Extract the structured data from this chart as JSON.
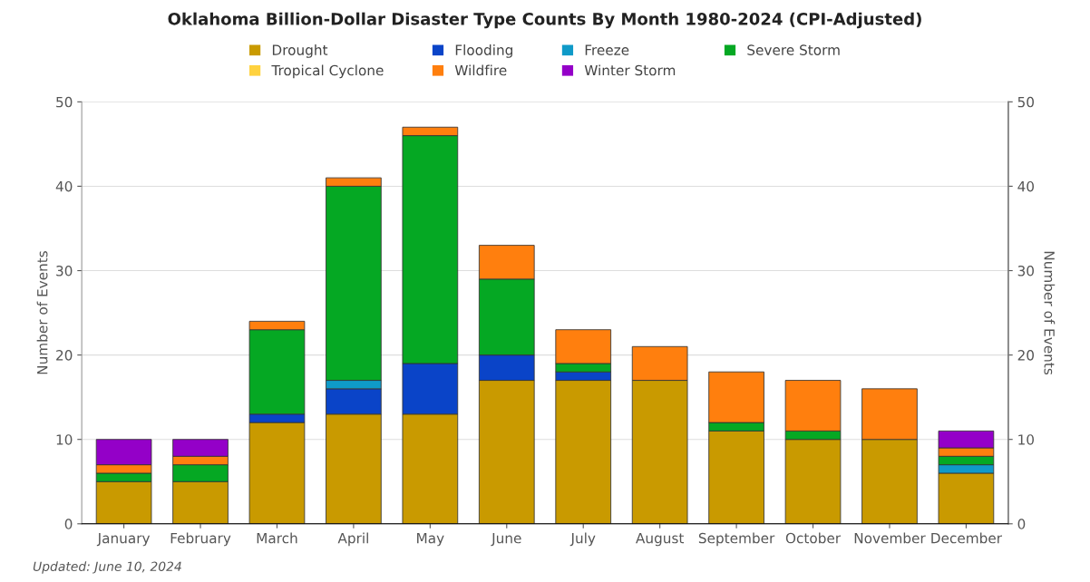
{
  "chart_data": {
    "type": "bar",
    "stacked": true,
    "title": "Oklahoma Billion-Dollar Disaster Type Counts By Month 1980-2024 (CPI-Adjusted)",
    "categories": [
      "January",
      "February",
      "March",
      "April",
      "May",
      "June",
      "July",
      "August",
      "September",
      "October",
      "November",
      "December"
    ],
    "series": [
      {
        "name": "Drought",
        "color": "#c99a00",
        "values": [
          5,
          5,
          12,
          13,
          13,
          17,
          17,
          17,
          11,
          10,
          10,
          6
        ]
      },
      {
        "name": "Flooding",
        "color": "#0a44c8",
        "values": [
          0,
          0,
          1,
          3,
          6,
          3,
          1,
          0,
          0,
          0,
          0,
          0
        ]
      },
      {
        "name": "Freeze",
        "color": "#0f9ac8",
        "values": [
          0,
          0,
          0,
          1,
          0,
          0,
          0,
          0,
          0,
          0,
          0,
          1
        ]
      },
      {
        "name": "Severe Storm",
        "color": "#05a823",
        "values": [
          1,
          2,
          10,
          23,
          27,
          9,
          1,
          0,
          1,
          1,
          0,
          1
        ]
      },
      {
        "name": "Tropical Cyclone",
        "color": "#ffd23f",
        "values": [
          0,
          0,
          0,
          0,
          0,
          0,
          0,
          0,
          0,
          0,
          0,
          0
        ]
      },
      {
        "name": "Wildfire",
        "color": "#ff7f0e",
        "values": [
          1,
          1,
          1,
          1,
          1,
          4,
          4,
          4,
          6,
          6,
          6,
          1
        ]
      },
      {
        "name": "Winter Storm",
        "color": "#9400c8",
        "values": [
          3,
          2,
          0,
          0,
          0,
          0,
          0,
          0,
          0,
          0,
          0,
          2
        ]
      }
    ],
    "ylabel": "Number of Events",
    "y2label": "Number of Events",
    "ylim": [
      0,
      50
    ],
    "yticks": [
      0,
      10,
      20,
      30,
      40,
      50
    ],
    "y2lim": [
      0,
      50
    ],
    "y2ticks": [
      0,
      10,
      20,
      30,
      40,
      50
    ],
    "grid": "y",
    "legend": "top",
    "annotations": [
      "Updated: June 10, 2024"
    ]
  }
}
